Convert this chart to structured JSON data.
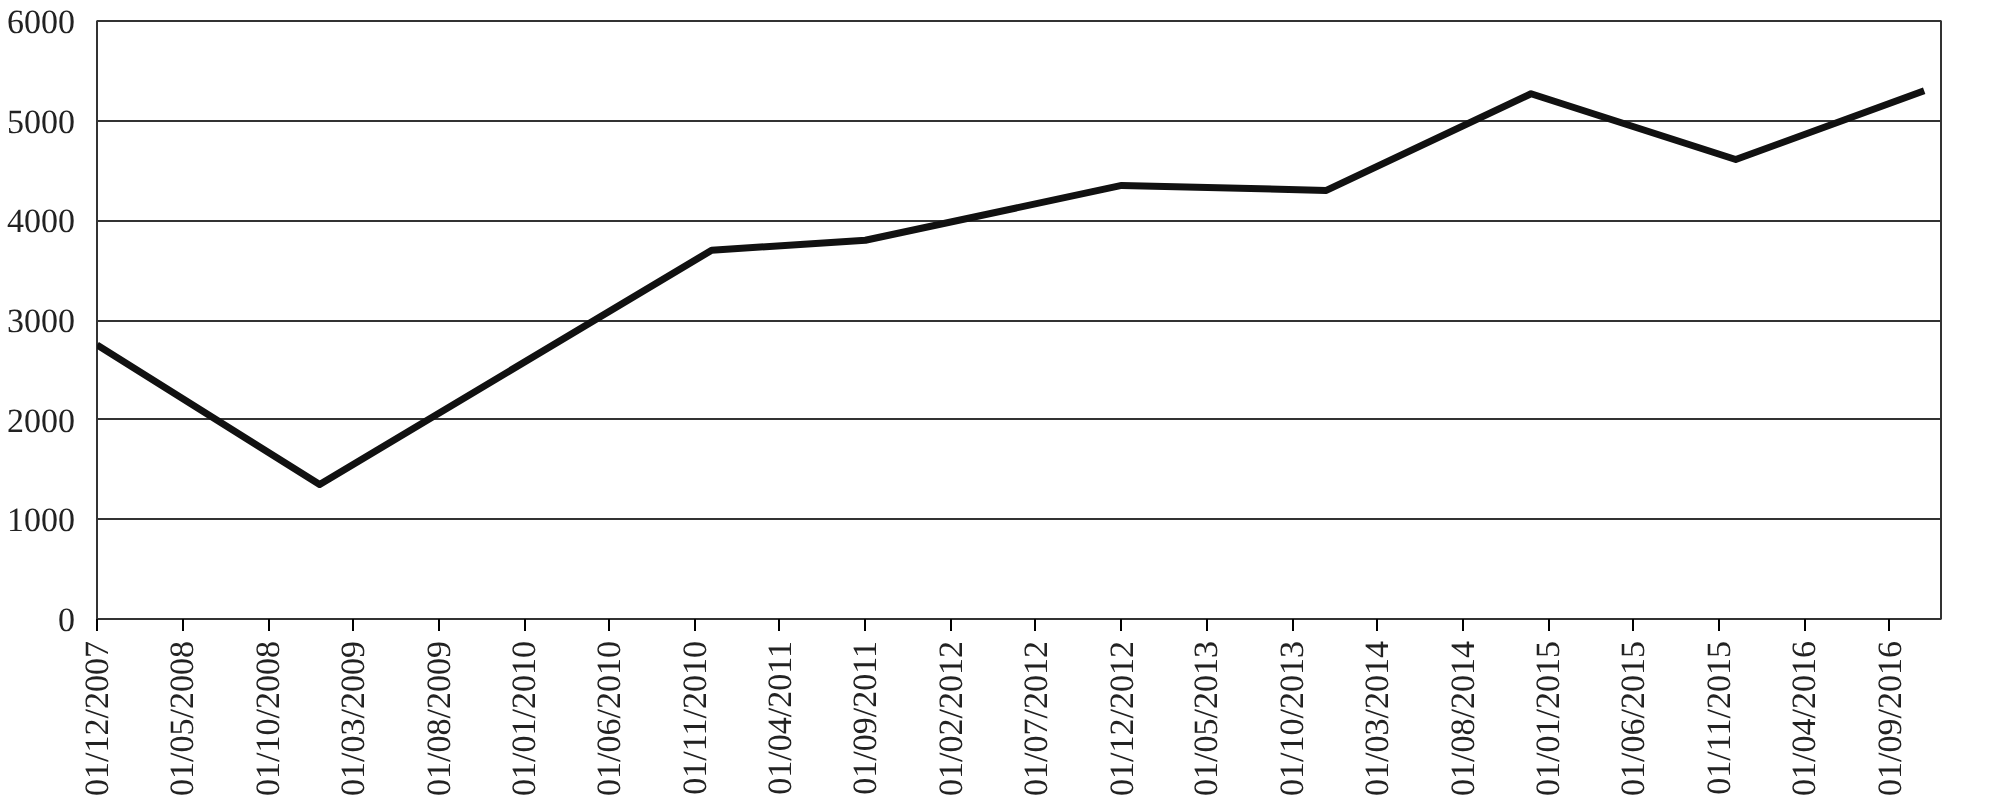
{
  "chart_data": {
    "type": "line",
    "x": [
      "2007-12",
      "2009-01",
      "2010-12",
      "2011-09",
      "2012-12",
      "2013-12",
      "2014-12",
      "2015-12",
      "2016-11"
    ],
    "series": [
      {
        "color": "#111111",
        "values": [
          2750,
          1350,
          3700,
          3800,
          4350,
          4300,
          5270,
          4610,
          5300
        ]
      }
    ],
    "xlim": [
      "2007-12-01",
      "2016-12-01"
    ],
    "xticks": [
      {
        "value": "2007-12-01",
        "label": "01/12/2007"
      },
      {
        "value": "2008-05-01",
        "label": "01/05/2008"
      },
      {
        "value": "2008-10-01",
        "label": "01/10/2008"
      },
      {
        "value": "2009-03-01",
        "label": "01/03/2009"
      },
      {
        "value": "2009-08-01",
        "label": "01/08/2009"
      },
      {
        "value": "2010-01-01",
        "label": "01/01/2010"
      },
      {
        "value": "2010-06-01",
        "label": "01/06/2010"
      },
      {
        "value": "2010-11-01",
        "label": "01/11/2010"
      },
      {
        "value": "2011-04-01",
        "label": "01/04/2011"
      },
      {
        "value": "2011-09-01",
        "label": "01/09/2011"
      },
      {
        "value": "2012-02-01",
        "label": "01/02/2012"
      },
      {
        "value": "2012-07-01",
        "label": "01/07/2012"
      },
      {
        "value": "2012-12-01",
        "label": "01/12/2012"
      },
      {
        "value": "2013-05-01",
        "label": "01/05/2013"
      },
      {
        "value": "2013-10-01",
        "label": "01/10/2013"
      },
      {
        "value": "2014-03-01",
        "label": "01/03/2014"
      },
      {
        "value": "2014-08-01",
        "label": "01/08/2014"
      },
      {
        "value": "2015-01-01",
        "label": "01/01/2015"
      },
      {
        "value": "2015-06-01",
        "label": "01/06/2015"
      },
      {
        "value": "2015-11-01",
        "label": "01/11/2015"
      },
      {
        "value": "2016-04-01",
        "label": "01/04/2016"
      },
      {
        "value": "2016-09-01",
        "label": "01/09/2016"
      }
    ],
    "ylim": [
      0,
      6000
    ],
    "yticks": [
      0,
      1000,
      2000,
      3000,
      4000,
      5000,
      6000
    ],
    "grid": "y",
    "marker": "none",
    "line_style": "solid"
  }
}
